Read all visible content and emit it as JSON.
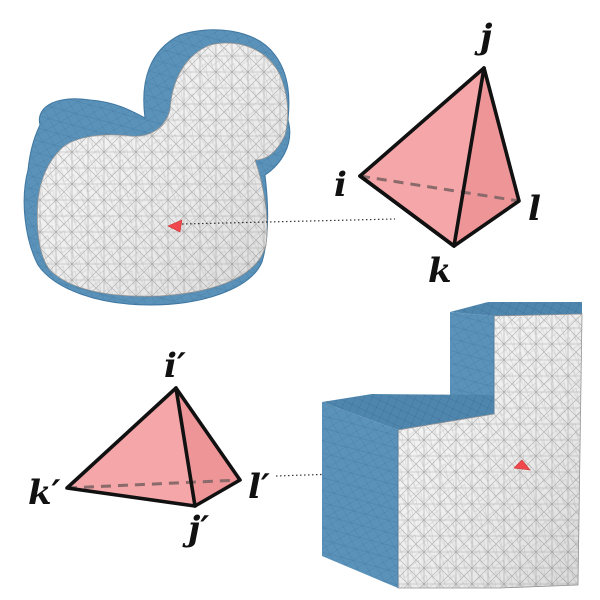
{
  "colors": {
    "surface_blue": "#5a92ba",
    "surface_blue_dark": "#3f77a1",
    "interior_white": "#f3f3f3",
    "mesh_line": "#9a9a9a",
    "tet_fill": "#f4a6a8",
    "tet_face_dark": "#ee9598",
    "highlight_red": "#f0484c",
    "edge_black": "#111111"
  },
  "top_tet": {
    "labels": {
      "i": "i",
      "j": "j",
      "k": "k",
      "l": "l"
    }
  },
  "bottom_tet": {
    "labels": {
      "i": "i′",
      "j": "j′",
      "k": "k′",
      "l": "l′"
    }
  },
  "icons": {
    "duck": "duck-mesh-cutaway",
    "block": "block-mesh-cutaway"
  }
}
